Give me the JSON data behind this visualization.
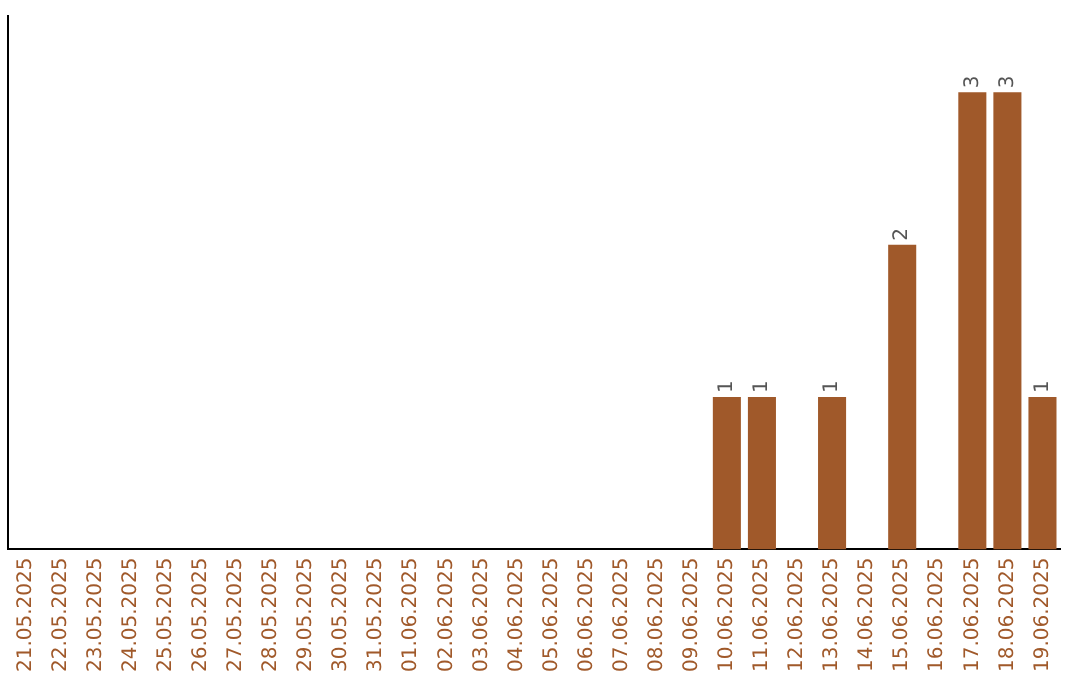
{
  "chart_data": {
    "type": "bar",
    "categories": [
      "21.05.2025",
      "22.05.2025",
      "23.05.2025",
      "24.05.2025",
      "25.05.2025",
      "26.05.2025",
      "27.05.2025",
      "28.05.2025",
      "29.05.2025",
      "30.05.2025",
      "31.05.2025",
      "01.06.2025",
      "02.06.2025",
      "03.06.2025",
      "04.06.2025",
      "05.06.2025",
      "06.06.2025",
      "07.06.2025",
      "08.06.2025",
      "09.06.2025",
      "10.06.2025",
      "11.06.2025",
      "12.06.2025",
      "13.06.2025",
      "14.06.2025",
      "15.06.2025",
      "16.06.2025",
      "17.06.2025",
      "18.06.2025",
      "19.06.2025"
    ],
    "values": [
      null,
      null,
      null,
      null,
      null,
      null,
      null,
      null,
      null,
      null,
      null,
      null,
      null,
      null,
      null,
      null,
      null,
      null,
      null,
      null,
      1,
      1,
      null,
      1,
      null,
      2,
      null,
      3,
      3,
      1
    ],
    "data_labels": true,
    "color": "#a0592a",
    "grid": false,
    "legend": false,
    "tick_labels": "x"
  }
}
